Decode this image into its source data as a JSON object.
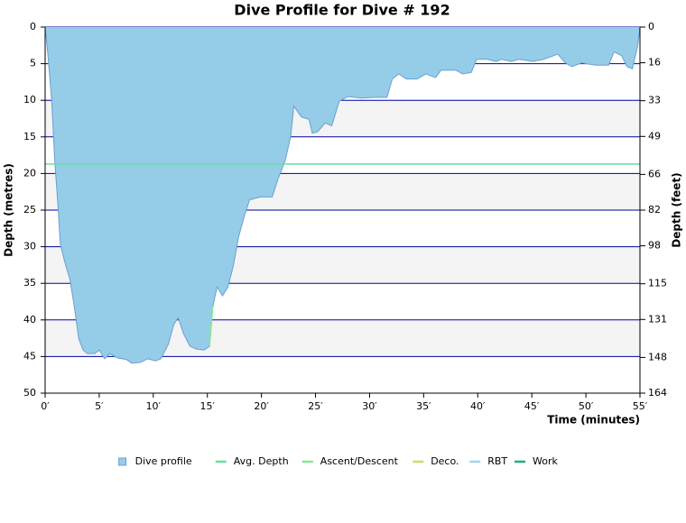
{
  "chart_data": {
    "type": "area",
    "title": "Dive Profile for Dive # 192",
    "xlabel": "Time (minutes)",
    "ylabel": "Depth (metres)",
    "y2label": "Depth (feet)",
    "xlim": [
      0,
      55
    ],
    "xticks": [
      {
        "value": 0,
        "label": "0′"
      },
      {
        "value": 5,
        "label": "5′"
      },
      {
        "value": 10,
        "label": "10′"
      },
      {
        "value": 15,
        "label": "15′"
      },
      {
        "value": 20,
        "label": "20′"
      },
      {
        "value": 25,
        "label": "25′"
      },
      {
        "value": 30,
        "label": "30′"
      },
      {
        "value": 35,
        "label": "35′"
      },
      {
        "value": 40,
        "label": "40′"
      },
      {
        "value": 45,
        "label": "45′"
      },
      {
        "value": 50,
        "label": "50′"
      },
      {
        "value": 55,
        "label": "55′"
      }
    ],
    "ylim": [
      0,
      50
    ],
    "yticks": [
      0,
      5,
      10,
      15,
      20,
      25,
      30,
      35,
      40,
      45,
      50
    ],
    "y_inverted": true,
    "y2lim": [
      0,
      164
    ],
    "y2ticks": [
      0,
      16,
      33,
      49,
      66,
      82,
      98,
      115,
      131,
      148,
      164
    ],
    "grid": true,
    "grid_color": "#0000a0",
    "legend": "bottom",
    "x": [
      0,
      0.25,
      0.6,
      0.9,
      1.2,
      1.4,
      1.8,
      2.3,
      2.7,
      3.1,
      3.5,
      3.9,
      4.6,
      5.0,
      5.5,
      6.0,
      6.7,
      7.5,
      8.0,
      8.8,
      9.5,
      10.2,
      10.7,
      11.4,
      11.9,
      12.3,
      12.8,
      13.4,
      14.0,
      14.7,
      15.2,
      15.5,
      15.9,
      16.4,
      16.9,
      17.4,
      17.9,
      18.4,
      18.9,
      19.9,
      21.0,
      21.5,
      22.2,
      22.7,
      23.0,
      23.7,
      24.4,
      24.7,
      25.2,
      25.9,
      26.5,
      27.2,
      28.0,
      29.2,
      30.5,
      31.6,
      32.1,
      32.7,
      33.4,
      34.4,
      35.2,
      36.1,
      36.6,
      38.0,
      38.6,
      39.4,
      39.9,
      40.9,
      41.7,
      42.2,
      43.1,
      43.8,
      45.1,
      46.1,
      47.4,
      48.1,
      48.7,
      49.6,
      50.9,
      52.1,
      52.6,
      53.3,
      53.8,
      54.3,
      54.8,
      55.0
    ],
    "series": [
      {
        "name": "Dive profile",
        "color": "#95cde8",
        "edge_color": "#6a9fd0",
        "values": [
          0,
          3.7,
          9.9,
          18.5,
          24.6,
          29.6,
          32,
          34.5,
          38.2,
          42.5,
          44.1,
          44.6,
          44.6,
          44.1,
          45.3,
          44.6,
          45.2,
          45.4,
          45.9,
          45.8,
          45.3,
          45.6,
          45.3,
          43.3,
          40.6,
          39.7,
          41.9,
          43.6,
          44,
          44.1,
          43.6,
          38.2,
          35.5,
          36.7,
          35.5,
          32.6,
          28.6,
          25.9,
          23.6,
          23.2,
          23.2,
          20.9,
          18.2,
          15,
          10.8,
          12.3,
          12.6,
          14.5,
          14.3,
          13.1,
          13.5,
          10.1,
          9.5,
          9.7,
          9.6,
          9.6,
          7.1,
          6.4,
          7.1,
          7.1,
          6.4,
          6.9,
          5.9,
          5.9,
          6.4,
          6.2,
          4.4,
          4.4,
          4.7,
          4.4,
          4.7,
          4.4,
          4.7,
          4.4,
          3.7,
          4.9,
          5.4,
          4.9,
          5.2,
          5.2,
          3.4,
          3.9,
          5.4,
          5.7,
          2.5,
          0
        ]
      },
      {
        "name": "Avg. Depth",
        "color": "#66e0a0",
        "value": 18.7
      },
      {
        "name": "Ascent/Descent",
        "color": "#88e888",
        "x": [
          15.2,
          15.5
        ],
        "values": [
          43.6,
          38.2
        ]
      },
      {
        "name": "Deco.",
        "color": "#ccdd66"
      },
      {
        "name": "RBT",
        "color": "#99d8ee"
      },
      {
        "name": "Work",
        "color": "#22aa88"
      }
    ]
  }
}
